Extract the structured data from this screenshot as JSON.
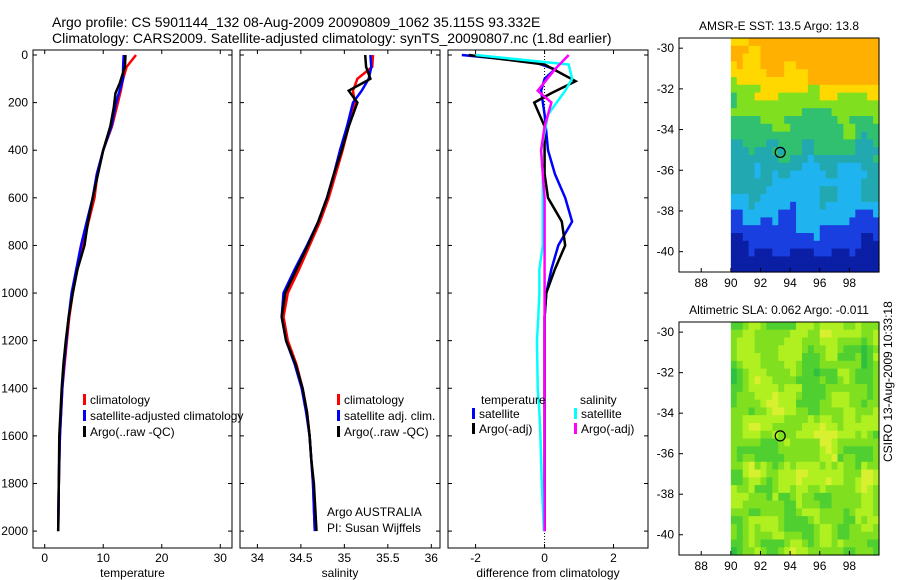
{
  "header": {
    "line1": "Argo profile: CS 5901144_132 08-Aug-2009 20090809_1062 35.115S 93.332E",
    "line2": "Climatology: CARS2009. Satellite-adjusted climatology: synTS_20090807.nc (1.8d earlier)"
  },
  "side_label": "CSIRO 13-Aug-2009 10:33:18",
  "colors": {
    "red": "#ff0000",
    "blue": "#0000ff",
    "black": "#000000",
    "cyan": "#00ffff",
    "magenta": "#ff00ff"
  },
  "chart_data": [
    {
      "id": "temperature",
      "type": "line",
      "xlabel": "temperature",
      "xlim": [
        -2,
        32
      ],
      "xticks": [
        0,
        10,
        20,
        30
      ],
      "ylim": [
        0,
        2050
      ],
      "yticks": [
        0,
        200,
        400,
        600,
        800,
        1000,
        1200,
        1400,
        1600,
        1800,
        2000
      ],
      "legend": [
        "climatology",
        "satellite-adjusted climatology",
        "Argo(..raw -QC)"
      ],
      "series": [
        {
          "name": "climatology",
          "color": "red",
          "x": [
            15.6,
            14,
            13.4,
            13,
            12.5,
            11.5,
            10,
            9,
            8.5,
            7.5,
            6.5,
            5.5,
            4.8,
            4.2,
            3.8,
            3.4,
            3,
            2.8,
            2.6,
            2.4,
            2.3
          ],
          "y": [
            0,
            50,
            100,
            150,
            200,
            300,
            400,
            500,
            600,
            700,
            800,
            900,
            1000,
            1100,
            1200,
            1300,
            1400,
            1500,
            1600,
            1800,
            2000
          ]
        },
        {
          "name": "satellite",
          "color": "blue",
          "x": [
            13.5,
            13.4,
            13.4,
            12.8,
            12.2,
            11.4,
            10,
            8.9,
            8.2,
            7.2,
            6.2,
            5.4,
            4.6,
            4.1,
            3.7,
            3.3,
            3,
            2.8,
            2.6,
            2.4,
            2.3
          ],
          "y": [
            0,
            50,
            100,
            150,
            200,
            300,
            400,
            500,
            600,
            700,
            800,
            900,
            1000,
            1100,
            1200,
            1300,
            1400,
            1500,
            1600,
            1800,
            2000
          ]
        },
        {
          "name": "argo",
          "color": "black",
          "x": [
            13.8,
            13.7,
            12.8,
            12.1,
            11.8,
            11.2,
            10,
            9.1,
            8.2,
            7.4,
            6.8,
            5.6,
            4.8,
            4.1,
            3.6,
            3.2,
            2.9,
            2.7,
            2.5,
            2.4,
            2.3
          ],
          "y": [
            0,
            50,
            120,
            160,
            220,
            300,
            400,
            500,
            600,
            700,
            800,
            900,
            1000,
            1100,
            1200,
            1300,
            1400,
            1500,
            1600,
            1800,
            2000
          ]
        }
      ]
    },
    {
      "id": "salinity",
      "type": "line",
      "xlabel": "salinity",
      "xlim": [
        33.8,
        36.1
      ],
      "xticks": [
        34,
        34.5,
        35,
        35.5,
        36
      ],
      "xtick_labels": [
        "34",
        "34.5",
        "35",
        "35.5",
        "36"
      ],
      "ylim": [
        0,
        2050
      ],
      "legend": [
        "climatology",
        "satellite adj. clim.",
        "Argo(..raw -QC)"
      ],
      "attribution": [
        "Argo AUSTRALIA",
        "PI: Susan Wijffels"
      ],
      "series": [
        {
          "name": "climatology",
          "color": "red",
          "x": [
            35.33,
            35.32,
            35.15,
            35.1,
            35.12,
            35.05,
            34.98,
            34.9,
            34.82,
            34.72,
            34.6,
            34.48,
            34.35,
            34.3,
            34.35,
            34.45,
            34.52,
            34.57,
            34.6,
            34.62,
            34.64,
            34.66
          ],
          "y": [
            0,
            50,
            100,
            150,
            200,
            300,
            400,
            500,
            600,
            700,
            800,
            900,
            1000,
            1100,
            1200,
            1300,
            1400,
            1500,
            1600,
            1700,
            1800,
            2000
          ]
        },
        {
          "name": "satellite",
          "color": "blue",
          "x": [
            35.3,
            35.31,
            35.28,
            35.2,
            35.1,
            35.03,
            34.95,
            34.88,
            34.8,
            34.7,
            34.57,
            34.43,
            34.3,
            34.28,
            34.33,
            34.43,
            34.51,
            34.56,
            34.6,
            34.62,
            34.64,
            34.66
          ],
          "y": [
            0,
            50,
            100,
            150,
            200,
            300,
            400,
            500,
            600,
            700,
            800,
            900,
            1000,
            1100,
            1200,
            1300,
            1400,
            1500,
            1600,
            1700,
            1800,
            2000
          ]
        },
        {
          "name": "argo",
          "color": "black",
          "x": [
            35.24,
            35.25,
            35.3,
            35.05,
            35.15,
            35.05,
            34.97,
            34.88,
            34.8,
            34.7,
            34.58,
            34.45,
            34.32,
            34.28,
            34.33,
            34.44,
            34.52,
            34.57,
            34.6,
            34.62,
            34.65,
            34.68
          ],
          "y": [
            0,
            50,
            100,
            150,
            200,
            300,
            400,
            500,
            600,
            700,
            800,
            900,
            1000,
            1100,
            1200,
            1300,
            1400,
            1500,
            1600,
            1700,
            1800,
            2000
          ]
        }
      ]
    },
    {
      "id": "difference",
      "type": "line",
      "xlabel": "difference from climatology",
      "xlim": [
        -2.8,
        3
      ],
      "xticks": [
        -2,
        0,
        2
      ],
      "ylim": [
        0,
        2050
      ],
      "legend_headers": [
        "temperature",
        "salinity"
      ],
      "legend": [
        "satellite",
        "Argo(-adj)",
        "satellite",
        "Argo(-adj)"
      ],
      "series": [
        {
          "name": "temperature satellite",
          "color": "blue",
          "x": [
            -2.4,
            -0.3,
            0.3,
            0,
            -0.1,
            0,
            0.1,
            0.3,
            0.6,
            0.8,
            0.4,
            0.2,
            0.05,
            0,
            0,
            0,
            0,
            0,
            0,
            0
          ],
          "y": [
            0,
            30,
            60,
            100,
            150,
            250,
            400,
            500,
            600,
            700,
            800,
            900,
            1000,
            1100,
            1200,
            1300,
            1400,
            1600,
            1800,
            2000
          ]
        },
        {
          "name": "temperature argo",
          "color": "black",
          "x": [
            -2.2,
            0,
            0.9,
            0.2,
            -0.3,
            0,
            0,
            0,
            0.1,
            0.5,
            0.6,
            0.3,
            0.05,
            0,
            0,
            0,
            0,
            0,
            0,
            0
          ],
          "y": [
            0,
            40,
            110,
            160,
            200,
            300,
            400,
            500,
            600,
            700,
            800,
            900,
            1000,
            1100,
            1200,
            1300,
            1400,
            1600,
            1800,
            2000
          ]
        },
        {
          "name": "salinity satellite",
          "color": "cyan",
          "x": [
            -2,
            0.7,
            0.8,
            0.6,
            0.1,
            -0.1,
            -0.05,
            -0.05,
            -0.05,
            -0.05,
            -0.15,
            -0.15,
            -0.18,
            -0.22,
            -0.2,
            -0.15,
            -0.12,
            -0.08,
            -0.02
          ],
          "y": [
            0,
            40,
            100,
            150,
            250,
            400,
            500,
            600,
            700,
            800,
            900,
            1000,
            1100,
            1200,
            1400,
            1500,
            1600,
            1800,
            2000
          ]
        },
        {
          "name": "salinity argo",
          "color": "magenta",
          "x": [
            0.7,
            0.3,
            -0.2,
            0.2,
            0,
            -0.1,
            -0.05,
            0,
            0,
            0,
            0,
            0,
            0,
            0,
            0,
            0,
            0
          ],
          "y": [
            0,
            60,
            150,
            200,
            300,
            400,
            500,
            600,
            700,
            800,
            1000,
            1200,
            1400,
            1600,
            1700,
            1800,
            2000
          ]
        }
      ]
    },
    {
      "id": "sst_map",
      "type": "heatmap",
      "title": "AMSR-E SST: 13.5 Argo: 13.8",
      "xlim": [
        86.5,
        100
      ],
      "ylim": [
        -41,
        -29.5
      ],
      "xticks": [
        88,
        90,
        92,
        94,
        96,
        98
      ],
      "yticks": [
        -30,
        -32,
        -34,
        -36,
        -38,
        -40
      ],
      "data_extent": {
        "lon": [
          90,
          100
        ],
        "lat": [
          -41,
          -29.5
        ]
      },
      "argo_position": {
        "lon": 93.33,
        "lat": -35.12
      },
      "field": "sst",
      "colors": [
        "#0a1fa5",
        "#1a3fe0",
        "#1fb4f0",
        "#22a8b0",
        "#30c070",
        "#80e020",
        "#ffd800",
        "#ffb000"
      ]
    },
    {
      "id": "sla_map",
      "type": "heatmap",
      "title": "Altimetric SLA: 0.062 Argo: -0.011",
      "xlim": [
        86.5,
        100
      ],
      "ylim": [
        -41,
        -29.5
      ],
      "xticks": [
        88,
        90,
        92,
        94,
        96,
        98
      ],
      "yticks": [
        -30,
        -32,
        -34,
        -36,
        -38,
        -40
      ],
      "data_extent": {
        "lon": [
          90,
          100
        ],
        "lat": [
          -41,
          -29.5
        ]
      },
      "argo_position": {
        "lon": 93.33,
        "lat": -35.12
      },
      "field": "sla",
      "colors": [
        "#30c040",
        "#50d030",
        "#80e020",
        "#b0f020",
        "#d8f030"
      ]
    }
  ]
}
